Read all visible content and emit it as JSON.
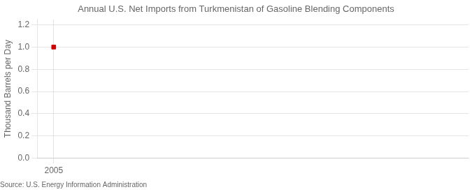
{
  "chart_data": {
    "type": "scatter",
    "title": "Annual U.S. Net Imports from Turkmenistan of Gasoline Blending Components",
    "ylabel": "Thousand Barrels per Day",
    "source": "Source: U.S. Energy Information Administration",
    "x": [
      2005
    ],
    "values": [
      1.0
    ],
    "color": "#cc0000",
    "marker": "square",
    "xlim": [
      2004.4,
      2020
    ],
    "xticks": [
      2005
    ],
    "ylim": [
      0.0,
      1.25
    ],
    "yticks": [
      {
        "value": 0.0,
        "label": "0.0"
      },
      0.2,
      0.4,
      0.6,
      0.8,
      {
        "value": 1.0,
        "label": "1.0"
      },
      1.2
    ],
    "grid": true
  }
}
